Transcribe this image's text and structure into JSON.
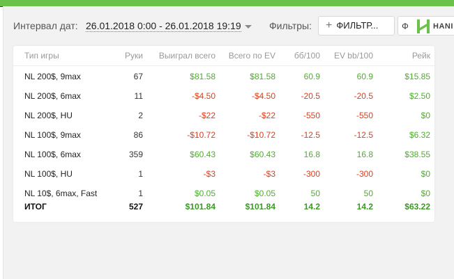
{
  "toolbar": {
    "date_label": "Интервал дат:",
    "date_range": "26.01.2018 0:00 - 26.01.2018 19:19",
    "filters_label": "Фильтры:",
    "filter_button_label": "ФИЛЬТР...",
    "logo_prefix": "Ф",
    "logo_text": "HANI"
  },
  "colors": {
    "brand_green": "#6cc14a",
    "positive": "#4cae2c",
    "negative": "#d9401f"
  },
  "table": {
    "headers": [
      "Тип игры",
      "Руки",
      "Выиграл всего",
      "Всего по EV",
      "бб/100",
      "EV bb/100",
      "Рейк"
    ],
    "rows": [
      {
        "game": "NL 200$, 9max",
        "hands": "67",
        "won": "$81.58",
        "ev": "$81.58",
        "bb100": "60.9",
        "evbb100": "60.9",
        "rake": "$15.85",
        "sign": "pos"
      },
      {
        "game": "NL 200$, 6max",
        "hands": "11",
        "won": "-$4.50",
        "ev": "-$4.50",
        "bb100": "-20.5",
        "evbb100": "-20.5",
        "rake": "$2.50",
        "sign": "neg"
      },
      {
        "game": "NL 200$, HU",
        "hands": "2",
        "won": "-$22",
        "ev": "-$22",
        "bb100": "-550",
        "evbb100": "-550",
        "rake": "$0",
        "sign": "neg"
      },
      {
        "game": "NL 100$, 9max",
        "hands": "86",
        "won": "-$10.72",
        "ev": "-$10.72",
        "bb100": "-12.5",
        "evbb100": "-12.5",
        "rake": "$6.32",
        "sign": "neg"
      },
      {
        "game": "NL 100$, 6max",
        "hands": "359",
        "won": "$60.43",
        "ev": "$60.43",
        "bb100": "16.8",
        "evbb100": "16.8",
        "rake": "$38.55",
        "sign": "pos"
      },
      {
        "game": "NL 100$, HU",
        "hands": "1",
        "won": "-$3",
        "ev": "-$3",
        "bb100": "-300",
        "evbb100": "-300",
        "rake": "$0",
        "sign": "neg"
      },
      {
        "game": "NL 10$, 6max, Fast",
        "hands": "1",
        "won": "$0.05",
        "ev": "$0.05",
        "bb100": "50",
        "evbb100": "50",
        "rake": "$0",
        "sign": "pos"
      }
    ],
    "total": {
      "game": "ИТОГ",
      "hands": "527",
      "won": "$101.84",
      "ev": "$101.84",
      "bb100": "14.2",
      "evbb100": "14.2",
      "rake": "$63.22"
    }
  }
}
